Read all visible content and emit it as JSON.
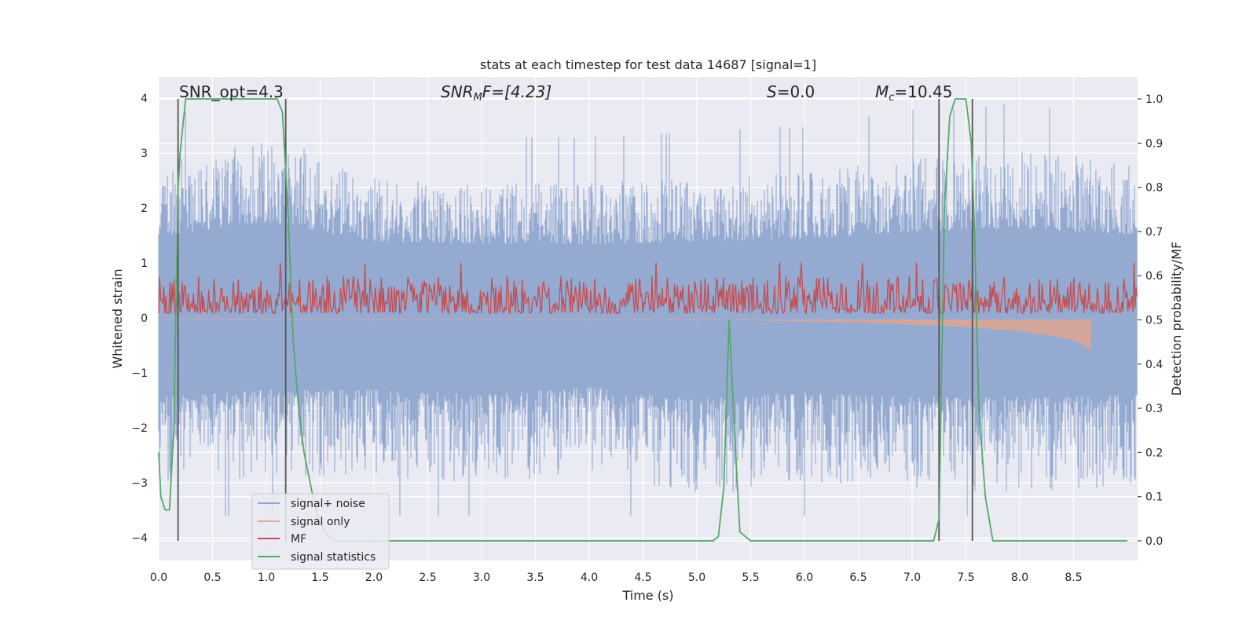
{
  "chart_data": {
    "type": "line",
    "title": "stats at each timestep for test data 14687 [signal=1]",
    "xlabel": "Time (s)",
    "ylabel_left": "Whitened strain",
    "ylabel_right": "Detection probability/MF",
    "xlim": [
      0.0,
      9.0
    ],
    "ylim_left": [
      -4.2,
      4.4
    ],
    "ylim_right": [
      -0.05,
      1.04
    ],
    "x_ticks": [
      "0.0",
      "0.5",
      "1.0",
      "1.5",
      "2.0",
      "2.5",
      "3.0",
      "3.5",
      "4.0",
      "4.5",
      "5.0",
      "5.5",
      "6.0",
      "6.5",
      "7.0",
      "7.5",
      "8.0",
      "8.5"
    ],
    "y_ticks_left": [
      "4",
      "3",
      "2",
      "1",
      "0",
      "−1",
      "−2",
      "−3",
      "−4"
    ],
    "y_ticks_right": [
      "1.0",
      "0.9",
      "0.8",
      "0.7",
      "0.6",
      "0.5",
      "0.4",
      "0.3",
      "0.2",
      "0.1",
      "0.0"
    ],
    "grid": true,
    "legend_position": "lower-left",
    "annotations": {
      "snr_opt": "SNR_opt=4.3",
      "snr_mf_main": "SNR",
      "snr_mf_sub": "M",
      "snr_mf_rest": "F=[4.23]",
      "s_main": "S",
      "s_rest": "=0.0",
      "mc_main": "M",
      "mc_sub": "c",
      "mc_rest": "=10.45"
    },
    "vertical_markers_x": [
      0.18,
      1.18,
      7.25,
      7.56
    ],
    "series": [
      {
        "name": "signal+ noise",
        "color": "#8fa6cf",
        "style": "dense noise band",
        "x": [
          0.0,
          1.0,
          2.0,
          3.0,
          4.0,
          5.0,
          6.0,
          7.0,
          8.0,
          9.0
        ],
        "envelope_upper": [
          2.8,
          3.4,
          2.6,
          2.5,
          2.5,
          2.6,
          2.7,
          3.0,
          3.1,
          2.9
        ],
        "envelope_lower": [
          -3.2,
          -2.9,
          -2.9,
          -3.1,
          -2.8,
          -3.3,
          -3.0,
          -3.2,
          -3.2,
          -3.1
        ]
      },
      {
        "name": "signal only",
        "color": "#e8a58a",
        "x": [
          0.0,
          5.5,
          6.5,
          7.0,
          7.5,
          8.0,
          8.3,
          8.5,
          8.62,
          8.66
        ],
        "values_right": [
          0.5,
          0.5,
          0.495,
          0.49,
          0.485,
          0.475,
          0.465,
          0.455,
          0.44,
          0.43
        ]
      },
      {
        "name": "MF",
        "color": "#c44e52",
        "style": "noisy band",
        "x": [
          0.0,
          9.0
        ],
        "band_right": [
          0.5,
          0.6
        ]
      },
      {
        "name": "signal statistics",
        "color": "#55a868",
        "x": [
          0.0,
          0.02,
          0.06,
          0.1,
          0.14,
          0.18,
          0.2,
          0.25,
          0.3,
          0.5,
          0.8,
          1.1,
          1.15,
          1.2,
          1.25,
          1.3,
          1.35,
          1.4,
          1.45,
          1.5,
          1.55,
          1.6,
          1.65,
          2.0,
          3.0,
          4.0,
          5.0,
          5.15,
          5.2,
          5.25,
          5.3,
          5.35,
          5.4,
          5.5,
          6.0,
          7.0,
          7.2,
          7.25,
          7.3,
          7.35,
          7.4,
          7.5,
          7.55,
          7.58,
          7.62,
          7.68,
          7.75,
          8.0,
          8.5,
          9.0
        ],
        "values_right": [
          0.2,
          0.1,
          0.07,
          0.07,
          0.25,
          0.8,
          0.88,
          1.0,
          1.0,
          1.0,
          1.0,
          1.0,
          0.97,
          0.75,
          0.45,
          0.3,
          0.2,
          0.14,
          0.08,
          0.04,
          0.02,
          0.005,
          0.0,
          0.0,
          0.0,
          0.0,
          0.0,
          0.0,
          0.01,
          0.12,
          0.5,
          0.25,
          0.02,
          0.0,
          0.0,
          0.0,
          0.0,
          0.05,
          0.75,
          0.96,
          1.0,
          1.0,
          0.9,
          0.7,
          0.3,
          0.1,
          0.0,
          0.0,
          0.0,
          0.0
        ]
      }
    ]
  }
}
